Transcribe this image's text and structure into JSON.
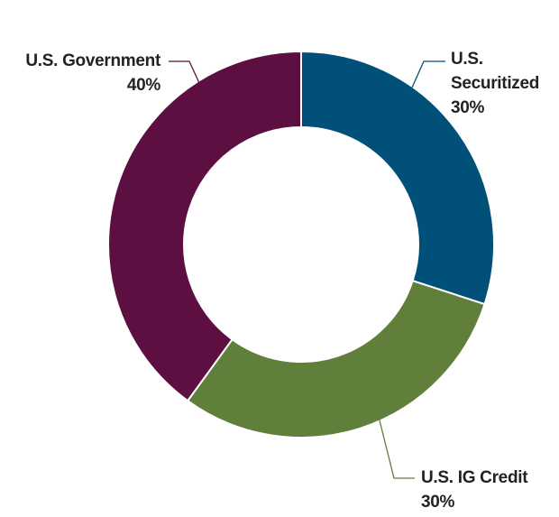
{
  "chart_data": {
    "type": "donut",
    "categories": [
      "U.S. Securitized",
      "U.S. IG Credit",
      "U.S. Government"
    ],
    "values": [
      30,
      30,
      40
    ],
    "value_labels": [
      "30%",
      "30%",
      "40%"
    ],
    "colors": [
      "#00507a",
      "#5f7f3a",
      "#5c0f40"
    ]
  }
}
